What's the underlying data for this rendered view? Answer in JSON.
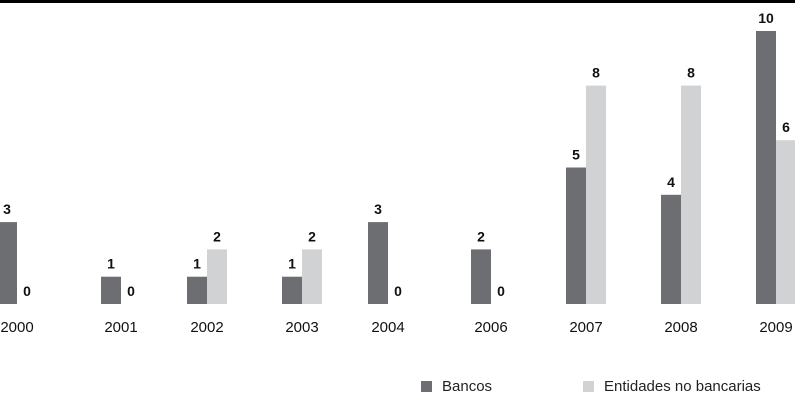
{
  "chart_data": {
    "type": "bar",
    "categories": [
      "2000",
      "2001",
      "2002",
      "2003",
      "2004",
      "2006",
      "2007",
      "2008",
      "2009"
    ],
    "series": [
      {
        "name": "Bancos",
        "values": [
          3,
          1,
          1,
          1,
          3,
          2,
          5,
          4,
          10
        ],
        "color": "#6d6e71"
      },
      {
        "name": "Entidades no bancarias",
        "values": [
          0,
          0,
          2,
          2,
          0,
          0,
          8,
          8,
          6
        ],
        "color": "#d1d2d4"
      }
    ],
    "title": "",
    "xlabel": "",
    "ylabel": "",
    "ylim": [
      0,
      10
    ],
    "grid": false,
    "data_labels": true,
    "legend": "bottom-right"
  }
}
